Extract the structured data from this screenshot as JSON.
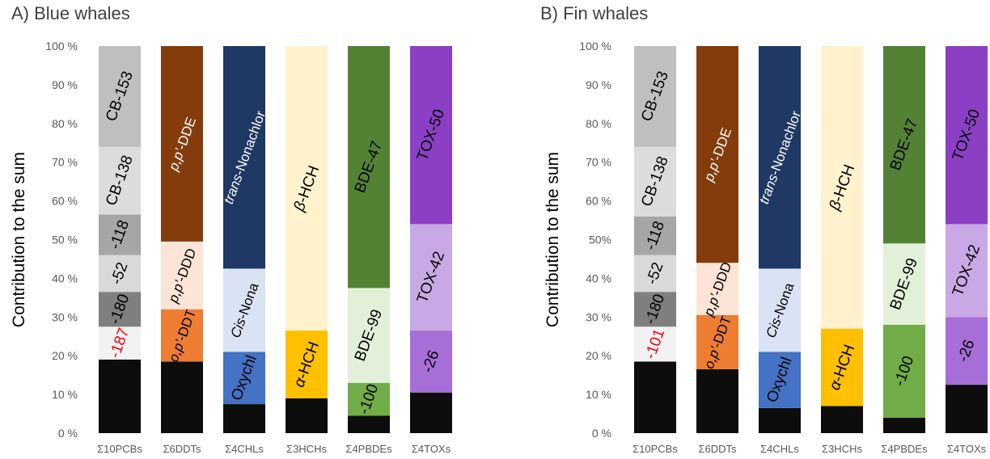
{
  "chart_data": [
    {
      "type": "bar",
      "stacked": true,
      "title": "A) Blue whales",
      "ylabel": "Contribution to the sum",
      "ylim": [
        0,
        100
      ],
      "yticks": [
        "0 %",
        "10 %",
        "20 %",
        "30 %",
        "40 %",
        "50 %",
        "60 %",
        "70 %",
        "80 %",
        "90 %",
        "100 %"
      ],
      "grid": false,
      "legend": "none",
      "categories": [
        {
          "name": "Σ10PCBs",
          "segments": [
            {
              "label": "",
              "value": 19,
              "color": "#0d0d0d"
            },
            {
              "label": "-187",
              "value": 8.5,
              "color": "#f2f2f2",
              "text_color": "#ff0000"
            },
            {
              "label": "-180",
              "value": 9,
              "color": "#7f7f7f"
            },
            {
              "label": "-52",
              "value": 9.5,
              "color": "#d9d9d9"
            },
            {
              "label": "-118",
              "value": 10.5,
              "color": "#a6a6a6"
            },
            {
              "label": "CB-138",
              "value": 17.5,
              "color": "#dcdcdc"
            },
            {
              "label": "CB-153",
              "value": 26,
              "color": "#bfbfbf"
            }
          ]
        },
        {
          "name": "Σ6DDTs",
          "segments": [
            {
              "label": "",
              "value": 18.5,
              "color": "#0d0d0d"
            },
            {
              "label": "o,p’-DDT",
              "value": 13.5,
              "color": "#ed7d31"
            },
            {
              "label": "p,p’-DDD",
              "value": 17.5,
              "color": "#fce4d6"
            },
            {
              "label": "p,p’-DDE",
              "value": 50.5,
              "color": "#843c0c",
              "text_color": "#ffffff"
            }
          ]
        },
        {
          "name": "Σ4CHLs",
          "segments": [
            {
              "label": "",
              "value": 7.5,
              "color": "#0d0d0d"
            },
            {
              "label": "Oxychl",
              "value": 13.5,
              "color": "#4472c4"
            },
            {
              "label": "Cis-Nona",
              "value": 21.5,
              "color": "#dae3f3"
            },
            {
              "label": "trans-Nonachlor",
              "value": 57.5,
              "color": "#203864",
              "text_color": "#ffffff"
            }
          ]
        },
        {
          "name": "Σ3HCHs",
          "segments": [
            {
              "label": "",
              "value": 9,
              "color": "#0d0d0d"
            },
            {
              "label": "α-HCH",
              "value": 17.5,
              "color": "#ffc000"
            },
            {
              "label": "β-HCH",
              "value": 73.5,
              "color": "#fff2cc"
            }
          ]
        },
        {
          "name": "Σ4PBDEs",
          "segments": [
            {
              "label": "",
              "value": 4.5,
              "color": "#0d0d0d"
            },
            {
              "label": "-100",
              "value": 8.5,
              "color": "#70ad47"
            },
            {
              "label": "BDE-99",
              "value": 24.5,
              "color": "#e2f0d9"
            },
            {
              "label": "BDE-47",
              "value": 62.5,
              "color": "#548235"
            }
          ]
        },
        {
          "name": "Σ4TOXs",
          "segments": [
            {
              "label": "",
              "value": 10.5,
              "color": "#0d0d0d"
            },
            {
              "label": "-26",
              "value": 16,
              "color": "#a66ed6"
            },
            {
              "label": "TOX-42",
              "value": 27.5,
              "color": "#c9a8e6"
            },
            {
              "label": "TOX-50",
              "value": 46,
              "color": "#8a3fc4"
            }
          ]
        }
      ]
    },
    {
      "type": "bar",
      "stacked": true,
      "title": "B) Fin whales",
      "ylabel": "Contribution to the sum",
      "ylim": [
        0,
        100
      ],
      "yticks": [
        "0 %",
        "10 %",
        "20 %",
        "30 %",
        "40 %",
        "50%",
        "60 %",
        "70 %",
        "80 %",
        "90 %",
        "100 %"
      ],
      "grid": false,
      "legend": "none",
      "categories": [
        {
          "name": "Σ10PCBs",
          "segments": [
            {
              "label": "",
              "value": 18.5,
              "color": "#0d0d0d"
            },
            {
              "label": "-101",
              "value": 9,
              "color": "#f2f2f2",
              "text_color": "#ff0000"
            },
            {
              "label": "-180",
              "value": 9,
              "color": "#7f7f7f"
            },
            {
              "label": "-52",
              "value": 9.5,
              "color": "#d9d9d9"
            },
            {
              "label": "-118",
              "value": 10,
              "color": "#a6a6a6"
            },
            {
              "label": "CB-138",
              "value": 18,
              "color": "#dcdcdc"
            },
            {
              "label": "CB-153",
              "value": 26,
              "color": "#bfbfbf"
            }
          ]
        },
        {
          "name": "Σ6DDTs",
          "segments": [
            {
              "label": "",
              "value": 16.5,
              "color": "#0d0d0d"
            },
            {
              "label": "o,p’-DDT",
              "value": 14,
              "color": "#ed7d31"
            },
            {
              "label": "p,p’-DDD",
              "value": 13.5,
              "color": "#fce4d6"
            },
            {
              "label": "p,p’-DDE",
              "value": 56,
              "color": "#843c0c",
              "text_color": "#ffffff"
            }
          ]
        },
        {
          "name": "Σ4CHLs",
          "segments": [
            {
              "label": "",
              "value": 6.5,
              "color": "#0d0d0d"
            },
            {
              "label": "Oxychl",
              "value": 14.5,
              "color": "#4472c4"
            },
            {
              "label": "Cis-Nona",
              "value": 21.5,
              "color": "#dae3f3"
            },
            {
              "label": "trans-Nonachlor",
              "value": 57.5,
              "color": "#203864",
              "text_color": "#ffffff"
            }
          ]
        },
        {
          "name": "Σ3HCHs",
          "segments": [
            {
              "label": "",
              "value": 7,
              "color": "#0d0d0d"
            },
            {
              "label": "α-HCH",
              "value": 20,
              "color": "#ffc000"
            },
            {
              "label": "β-HCH",
              "value": 73,
              "color": "#fff2cc"
            }
          ]
        },
        {
          "name": "Σ4PBDEs",
          "segments": [
            {
              "label": "",
              "value": 4,
              "color": "#0d0d0d"
            },
            {
              "label": "-100",
              "value": 24,
              "color": "#70ad47"
            },
            {
              "label": "BDE-99",
              "value": 21,
              "color": "#e2f0d9"
            },
            {
              "label": "BDE-47",
              "value": 51,
              "color": "#548235"
            }
          ]
        },
        {
          "name": "Σ4TOXs",
          "segments": [
            {
              "label": "",
              "value": 12.5,
              "color": "#0d0d0d"
            },
            {
              "label": "-26",
              "value": 17.5,
              "color": "#a66ed6"
            },
            {
              "label": "TOX-42",
              "value": 24,
              "color": "#c9a8e6"
            },
            {
              "label": "TOX-50",
              "value": 46,
              "color": "#8a3fc4"
            }
          ]
        }
      ]
    }
  ]
}
